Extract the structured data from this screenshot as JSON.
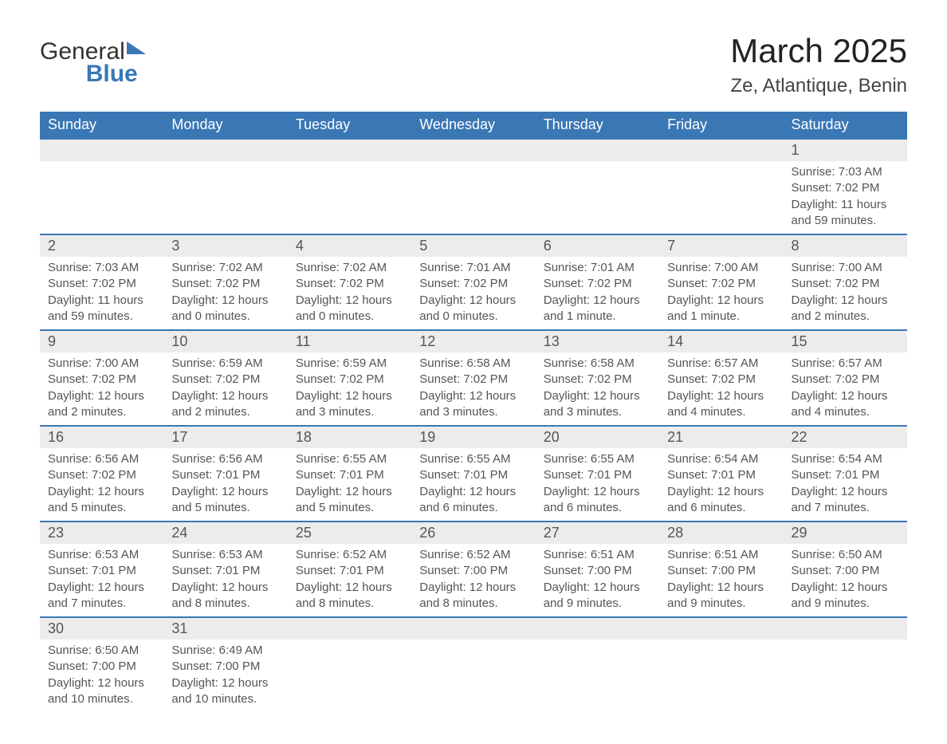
{
  "logo": {
    "word1": "General",
    "word2": "Blue"
  },
  "title": "March 2025",
  "location": "Ze, Atlantique, Benin",
  "colors": {
    "header_bg": "#3a77b5",
    "header_text": "#ffffff",
    "daynum_bg": "#ececec",
    "border": "#3a77b5",
    "text": "#555555"
  },
  "day_names": [
    "Sunday",
    "Monday",
    "Tuesday",
    "Wednesday",
    "Thursday",
    "Friday",
    "Saturday"
  ],
  "weeks": [
    [
      {
        "blank": true
      },
      {
        "blank": true
      },
      {
        "blank": true
      },
      {
        "blank": true
      },
      {
        "blank": true
      },
      {
        "blank": true
      },
      {
        "n": "1",
        "sunrise": "Sunrise: 7:03 AM",
        "sunset": "Sunset: 7:02 PM",
        "daylight": "Daylight: 11 hours and 59 minutes."
      }
    ],
    [
      {
        "n": "2",
        "sunrise": "Sunrise: 7:03 AM",
        "sunset": "Sunset: 7:02 PM",
        "daylight": "Daylight: 11 hours and 59 minutes."
      },
      {
        "n": "3",
        "sunrise": "Sunrise: 7:02 AM",
        "sunset": "Sunset: 7:02 PM",
        "daylight": "Daylight: 12 hours and 0 minutes."
      },
      {
        "n": "4",
        "sunrise": "Sunrise: 7:02 AM",
        "sunset": "Sunset: 7:02 PM",
        "daylight": "Daylight: 12 hours and 0 minutes."
      },
      {
        "n": "5",
        "sunrise": "Sunrise: 7:01 AM",
        "sunset": "Sunset: 7:02 PM",
        "daylight": "Daylight: 12 hours and 0 minutes."
      },
      {
        "n": "6",
        "sunrise": "Sunrise: 7:01 AM",
        "sunset": "Sunset: 7:02 PM",
        "daylight": "Daylight: 12 hours and 1 minute."
      },
      {
        "n": "7",
        "sunrise": "Sunrise: 7:00 AM",
        "sunset": "Sunset: 7:02 PM",
        "daylight": "Daylight: 12 hours and 1 minute."
      },
      {
        "n": "8",
        "sunrise": "Sunrise: 7:00 AM",
        "sunset": "Sunset: 7:02 PM",
        "daylight": "Daylight: 12 hours and 2 minutes."
      }
    ],
    [
      {
        "n": "9",
        "sunrise": "Sunrise: 7:00 AM",
        "sunset": "Sunset: 7:02 PM",
        "daylight": "Daylight: 12 hours and 2 minutes."
      },
      {
        "n": "10",
        "sunrise": "Sunrise: 6:59 AM",
        "sunset": "Sunset: 7:02 PM",
        "daylight": "Daylight: 12 hours and 2 minutes."
      },
      {
        "n": "11",
        "sunrise": "Sunrise: 6:59 AM",
        "sunset": "Sunset: 7:02 PM",
        "daylight": "Daylight: 12 hours and 3 minutes."
      },
      {
        "n": "12",
        "sunrise": "Sunrise: 6:58 AM",
        "sunset": "Sunset: 7:02 PM",
        "daylight": "Daylight: 12 hours and 3 minutes."
      },
      {
        "n": "13",
        "sunrise": "Sunrise: 6:58 AM",
        "sunset": "Sunset: 7:02 PM",
        "daylight": "Daylight: 12 hours and 3 minutes."
      },
      {
        "n": "14",
        "sunrise": "Sunrise: 6:57 AM",
        "sunset": "Sunset: 7:02 PM",
        "daylight": "Daylight: 12 hours and 4 minutes."
      },
      {
        "n": "15",
        "sunrise": "Sunrise: 6:57 AM",
        "sunset": "Sunset: 7:02 PM",
        "daylight": "Daylight: 12 hours and 4 minutes."
      }
    ],
    [
      {
        "n": "16",
        "sunrise": "Sunrise: 6:56 AM",
        "sunset": "Sunset: 7:02 PM",
        "daylight": "Daylight: 12 hours and 5 minutes."
      },
      {
        "n": "17",
        "sunrise": "Sunrise: 6:56 AM",
        "sunset": "Sunset: 7:01 PM",
        "daylight": "Daylight: 12 hours and 5 minutes."
      },
      {
        "n": "18",
        "sunrise": "Sunrise: 6:55 AM",
        "sunset": "Sunset: 7:01 PM",
        "daylight": "Daylight: 12 hours and 5 minutes."
      },
      {
        "n": "19",
        "sunrise": "Sunrise: 6:55 AM",
        "sunset": "Sunset: 7:01 PM",
        "daylight": "Daylight: 12 hours and 6 minutes."
      },
      {
        "n": "20",
        "sunrise": "Sunrise: 6:55 AM",
        "sunset": "Sunset: 7:01 PM",
        "daylight": "Daylight: 12 hours and 6 minutes."
      },
      {
        "n": "21",
        "sunrise": "Sunrise: 6:54 AM",
        "sunset": "Sunset: 7:01 PM",
        "daylight": "Daylight: 12 hours and 6 minutes."
      },
      {
        "n": "22",
        "sunrise": "Sunrise: 6:54 AM",
        "sunset": "Sunset: 7:01 PM",
        "daylight": "Daylight: 12 hours and 7 minutes."
      }
    ],
    [
      {
        "n": "23",
        "sunrise": "Sunrise: 6:53 AM",
        "sunset": "Sunset: 7:01 PM",
        "daylight": "Daylight: 12 hours and 7 minutes."
      },
      {
        "n": "24",
        "sunrise": "Sunrise: 6:53 AM",
        "sunset": "Sunset: 7:01 PM",
        "daylight": "Daylight: 12 hours and 8 minutes."
      },
      {
        "n": "25",
        "sunrise": "Sunrise: 6:52 AM",
        "sunset": "Sunset: 7:01 PM",
        "daylight": "Daylight: 12 hours and 8 minutes."
      },
      {
        "n": "26",
        "sunrise": "Sunrise: 6:52 AM",
        "sunset": "Sunset: 7:00 PM",
        "daylight": "Daylight: 12 hours and 8 minutes."
      },
      {
        "n": "27",
        "sunrise": "Sunrise: 6:51 AM",
        "sunset": "Sunset: 7:00 PM",
        "daylight": "Daylight: 12 hours and 9 minutes."
      },
      {
        "n": "28",
        "sunrise": "Sunrise: 6:51 AM",
        "sunset": "Sunset: 7:00 PM",
        "daylight": "Daylight: 12 hours and 9 minutes."
      },
      {
        "n": "29",
        "sunrise": "Sunrise: 6:50 AM",
        "sunset": "Sunset: 7:00 PM",
        "daylight": "Daylight: 12 hours and 9 minutes."
      }
    ],
    [
      {
        "n": "30",
        "sunrise": "Sunrise: 6:50 AM",
        "sunset": "Sunset: 7:00 PM",
        "daylight": "Daylight: 12 hours and 10 minutes."
      },
      {
        "n": "31",
        "sunrise": "Sunrise: 6:49 AM",
        "sunset": "Sunset: 7:00 PM",
        "daylight": "Daylight: 12 hours and 10 minutes."
      },
      {
        "blank": true
      },
      {
        "blank": true
      },
      {
        "blank": true
      },
      {
        "blank": true
      },
      {
        "blank": true
      }
    ]
  ]
}
